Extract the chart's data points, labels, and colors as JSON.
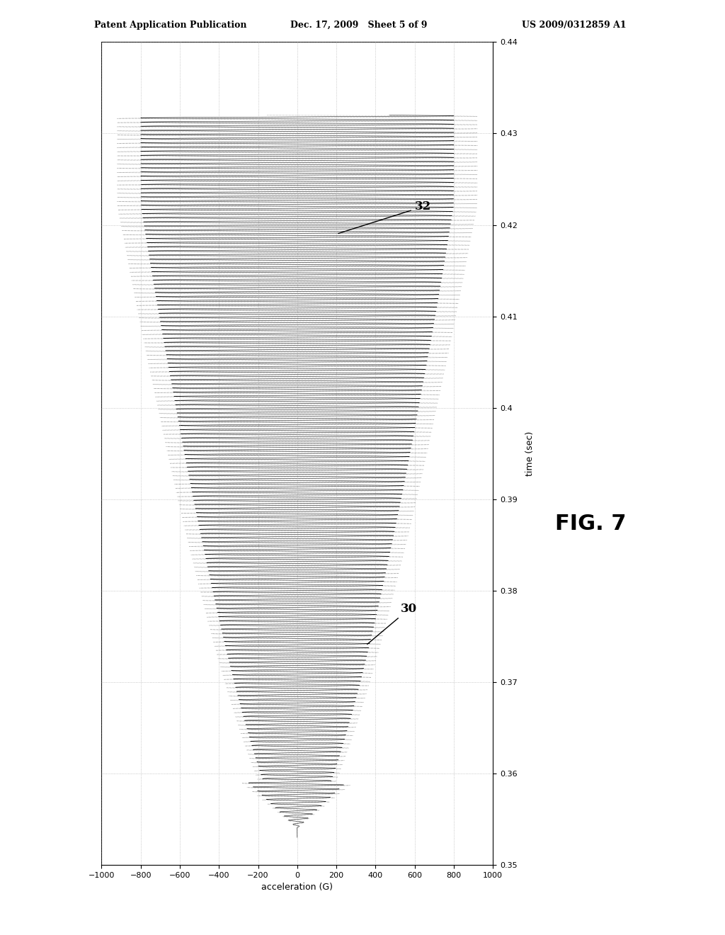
{
  "title": "FIG. 7",
  "xlabel": "acceleration (G)",
  "ylabel": "time (sec)",
  "xlim": [
    -1000,
    1000
  ],
  "ylim": [
    0.35,
    0.44
  ],
  "xticks": [
    -1000,
    -800,
    -600,
    -400,
    -200,
    0,
    200,
    400,
    600,
    800,
    1000
  ],
  "ytick_vals": [
    0.35,
    0.36,
    0.37,
    0.38,
    0.39,
    0.4,
    0.41,
    0.42,
    0.43,
    0.44
  ],
  "ytick_labels": [
    "0.35",
    "0.36",
    "0.37",
    "0.38",
    "0.39",
    "0.4",
    "0.41",
    "0.42",
    "0.43",
    "0.44"
  ],
  "label_30": "30",
  "label_32": "32",
  "header_left": "Patent Application Publication",
  "header_center": "Dec. 17, 2009   Sheet 5 of 9",
  "header_right": "US 2009/0312859 A1",
  "bg_color": "#ffffff",
  "plot_bg": "#ffffff",
  "grid_color": "#999999",
  "fig_width": 10.24,
  "fig_height": 13.2
}
